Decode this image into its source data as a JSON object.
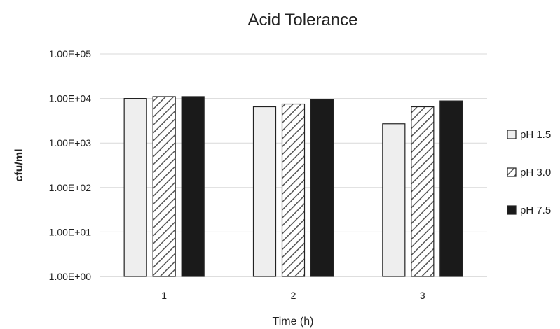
{
  "chart_data": {
    "type": "bar",
    "title": "Acid Tolerance",
    "xlabel": "Time (h)",
    "ylabel": "cfu/ml",
    "yscale": "log",
    "ylim": [
      1,
      100000
    ],
    "ytick_labels": [
      "1.00E+00",
      "1.00E+01",
      "1.00E+02",
      "1.00E+03",
      "1.00E+04",
      "1.00E+05"
    ],
    "grid": "horizontal",
    "legend_position": "right",
    "categories": [
      "1",
      "2",
      "3"
    ],
    "series": [
      {
        "name": "pH 1.5",
        "values": [
          10000,
          6500,
          2700
        ],
        "style": "light-fill",
        "color": "#eeeeee"
      },
      {
        "name": "pH 3.0",
        "values": [
          11000,
          7500,
          6500
        ],
        "style": "hatched",
        "color": "#555555"
      },
      {
        "name": "pH 7.5",
        "values": [
          11000,
          9500,
          8800
        ],
        "style": "solid",
        "color": "#1a1a1a"
      }
    ]
  }
}
